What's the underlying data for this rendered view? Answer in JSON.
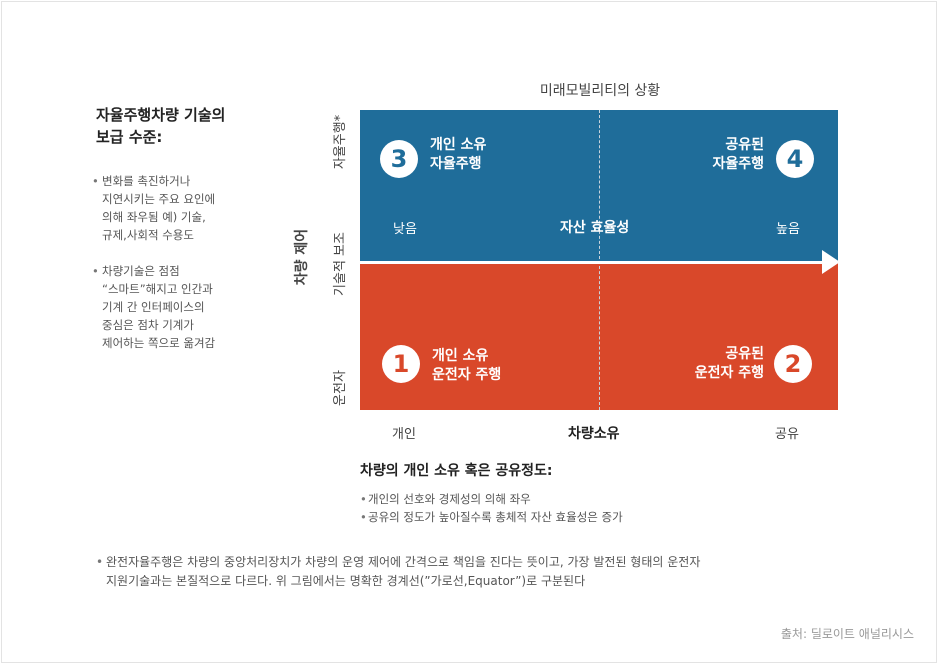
{
  "side": {
    "title": "자율주행차량 기술의\n보급 수준:",
    "bullets": [
      "변화를 촉진하거나\n지연시키는 주요 요인에\n의해 좌우됨 예) 기술,\n규제,사회적 수용도",
      "차량기술은 점점\n“스마트”해지고 인간과\n기계 간 인터페이스의\n중심은 점차 기계가\n제어하는 쪽으로 옮겨감"
    ]
  },
  "diagram": {
    "title": "미래모빌리티의 상황",
    "quadrants": {
      "q1": {
        "number": "1",
        "label": "개인 소유\n운전자 주행"
      },
      "q2": {
        "number": "2",
        "label": "공유된\n운전자 주행"
      },
      "q3": {
        "number": "3",
        "label": "개인 소유\n자율주행"
      },
      "q4": {
        "number": "4",
        "label": "공유된\n자율주행"
      }
    },
    "efficiency": {
      "low": "낮음",
      "mid": "자산 효율성",
      "high": "높음"
    },
    "y_axis": {
      "title": "차량 제어",
      "top": "자율주행*",
      "mid": "기술적 보조",
      "bottom": "운전자"
    },
    "x_axis": {
      "title": "차량소유",
      "left": "개인",
      "right": "공유"
    },
    "colors": {
      "top": "#1f6d9a",
      "bottom": "#d9482a"
    }
  },
  "ownership": {
    "title": "차량의 개인 소유 혹은 공유정도:",
    "bullets": [
      "개인의 선호와 경제성의 의해 좌우",
      "공유의 정도가 높아질수록 총체적 자산 효율성은 증가"
    ]
  },
  "footnote": "완전자율주행은 차량의 중앙처리장치가 차량의 운영 제어에 간격으로 책임을 진다는 뜻이고, 가장 발전된 형태의 운전자\n지원기술과는 본질적으로 다르다. 위 그림에서는 명확한 경계선(”가로선,Equator”)로 구분된다",
  "source": "출처: 딜로이트 애널리시스"
}
